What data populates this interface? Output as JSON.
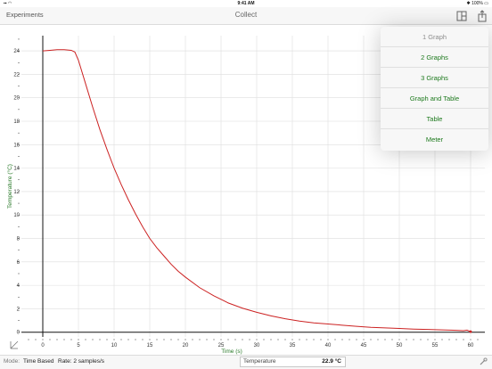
{
  "status_bar": {
    "time": "9:41 AM",
    "battery": "100%"
  },
  "nav": {
    "back_label": "Experiments",
    "title": "Collect"
  },
  "popup_menu": {
    "items": [
      {
        "label": "1 Graph",
        "enabled": false
      },
      {
        "label": "2 Graphs",
        "enabled": true
      },
      {
        "label": "3 Graphs",
        "enabled": true
      },
      {
        "label": "Graph and Table",
        "enabled": true
      },
      {
        "label": "Table",
        "enabled": true
      },
      {
        "label": "Meter",
        "enabled": true
      }
    ]
  },
  "bottom_bar": {
    "mode_label": "Mode:",
    "mode_value": "Time Based",
    "rate": "Rate: 2 samples/s",
    "meter_label": "Temperature",
    "meter_value": "22.9 °C"
  },
  "chart_data": {
    "type": "line",
    "xlabel": "Time (s)",
    "ylabel": "Temperature (°C)",
    "xlim": [
      -3,
      62
    ],
    "ylim": [
      -0.4,
      25.3
    ],
    "xticks": [
      0,
      5,
      10,
      15,
      20,
      25,
      30,
      35,
      40,
      45,
      50,
      55,
      60
    ],
    "yticks": [
      0,
      2,
      4,
      6,
      8,
      10,
      12,
      14,
      16,
      18,
      20,
      22,
      24
    ],
    "grid": true,
    "colors": {
      "line": "#cc2222",
      "axis_title": "#2a7a2a",
      "grid": "#dedede"
    },
    "series": [
      {
        "x": [
          0,
          1,
          2,
          3,
          4,
          4.5,
          5,
          6,
          7,
          8,
          9,
          10,
          11,
          12,
          13,
          14,
          15,
          16,
          17,
          18,
          19,
          20,
          22,
          24,
          26,
          28,
          30,
          32,
          34,
          36,
          38,
          40,
          42,
          44,
          46,
          48,
          50,
          52,
          54,
          56,
          58,
          59,
          59.5,
          60
        ],
        "y": [
          24.0,
          24.05,
          24.1,
          24.1,
          24.05,
          23.9,
          23.2,
          21.2,
          19.2,
          17.3,
          15.6,
          14.0,
          12.6,
          11.3,
          10.1,
          9.0,
          8.0,
          7.2,
          6.5,
          5.8,
          5.2,
          4.7,
          3.8,
          3.1,
          2.5,
          2.05,
          1.7,
          1.4,
          1.15,
          0.95,
          0.8,
          0.7,
          0.6,
          0.5,
          0.42,
          0.37,
          0.32,
          0.27,
          0.24,
          0.2,
          0.16,
          0.13,
          0.18,
          0.05
        ]
      }
    ]
  }
}
